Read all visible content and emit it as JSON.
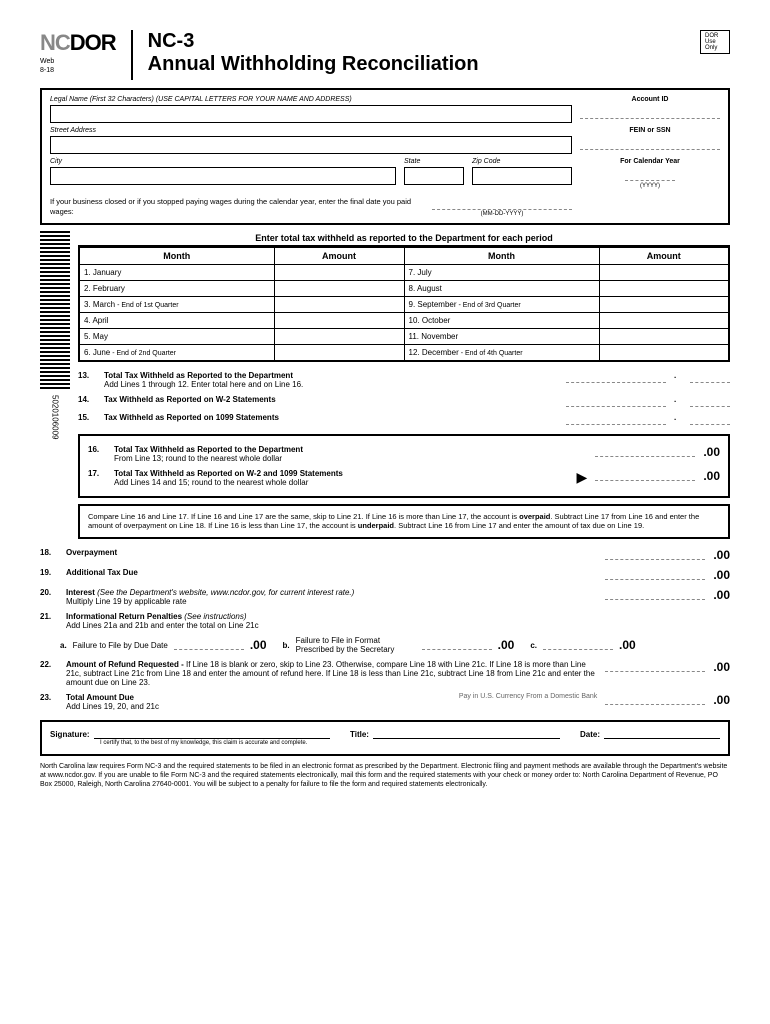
{
  "logo": {
    "prefix": "NC",
    "suffix": "DOR",
    "sub1": "Web",
    "sub2": "8-18"
  },
  "form": {
    "num": "NC-3",
    "title": "Annual Withholding Reconciliation"
  },
  "use_box": {
    "l1": "DOR",
    "l2": "Use",
    "l3": "Only"
  },
  "fields": {
    "legal_name": "Legal Name (First 32 Characters) (USE CAPITAL LETTERS FOR YOUR NAME AND ADDRESS)",
    "street": "Street Address",
    "city": "City",
    "state": "State",
    "zip": "Zip Code",
    "account": "Account ID",
    "fein": "FEIN or SSN",
    "year": "For Calendar Year",
    "year_sub": "(YYYY)",
    "closed": "If your business closed or if you stopped paying wages during the calendar year, enter the final date you paid wages:",
    "date_sub": "(MM-DD-YYYY)"
  },
  "section_hdr": "Enter total tax withheld as reported to the Department for each period",
  "tbl": {
    "month": "Month",
    "amount": "Amount"
  },
  "months": [
    {
      "n": "1.",
      "m": "January"
    },
    {
      "n": "2.",
      "m": "February"
    },
    {
      "n": "3.",
      "m": "March",
      "q": " - End of 1st Quarter"
    },
    {
      "n": "4.",
      "m": "April"
    },
    {
      "n": "5.",
      "m": "May"
    },
    {
      "n": "6.",
      "m": "June",
      "q": " - End of 2nd Quarter"
    },
    {
      "n": "7.",
      "m": "July"
    },
    {
      "n": "8.",
      "m": "August"
    },
    {
      "n": "9.",
      "m": "September",
      "q": " - End of 3rd Quarter"
    },
    {
      "n": "10.",
      "m": "October"
    },
    {
      "n": "11.",
      "m": "November"
    },
    {
      "n": "12.",
      "m": "December",
      "q": " - End of 4th Quarter"
    }
  ],
  "lines": {
    "l13": {
      "n": "13.",
      "t": "Total Tax Withheld as Reported to the Department",
      "s": "Add Lines 1 through 12.  Enter total here and on Line 16."
    },
    "l14": {
      "n": "14.",
      "t": "Tax Withheld as Reported on W-2 Statements"
    },
    "l15": {
      "n": "15.",
      "t": "Tax Withheld as Reported on 1099 Statements"
    },
    "l16": {
      "n": "16.",
      "t": "Total Tax Withheld as Reported to the Department",
      "s": "From Line 13; round to the nearest whole dollar"
    },
    "l17": {
      "n": "17.",
      "t": "Total Tax Withheld as Reported on  W-2 and 1099 Statements",
      "s": "Add Lines 14 and 15; round to the nearest whole dollar"
    },
    "l18": {
      "n": "18.",
      "t": "Overpayment"
    },
    "l19": {
      "n": "19.",
      "t": "Additional Tax Due"
    },
    "l20": {
      "n": "20.",
      "t": "Interest",
      "i": " (See the Department's website, www.ncdor.gov, for current interest rate.)",
      "s": "Multiply Line 19 by applicable rate"
    },
    "l21": {
      "n": "21.",
      "t": "Informational Return Penalties",
      "i": " (See instructions)",
      "s": "Add Lines 21a and 21b and enter the total on Line 21c"
    },
    "l21a": {
      "n": "a.",
      "t": "Failure to File by Due Date"
    },
    "l21b": {
      "n": "b.",
      "t": "Failure to File in Format Prescribed by the Secretary"
    },
    "l21c": {
      "n": "c."
    },
    "l22": {
      "n": "22.",
      "t": "Amount of Refund Requested - ",
      "s": "If Line 18 is blank or zero, skip to Line 23. Otherwise, compare Line 18 with Line 21c. If Line 18 is more than Line 21c, subtract Line 21c from Line 18 and enter the amount of refund here. If Line 18 is less than Line 21c, subtract Line 18 from Line 21c and enter the amount due on Line 23."
    },
    "l23": {
      "n": "23.",
      "t": "Total Amount Due",
      "s": "Add Lines 19, 20, and 21c",
      "p": "Pay in U.S. Currency From a Domestic Bank"
    }
  },
  "compare": "Compare Line 16 and Line 17.  If Line 16 and Line 17 are the same, skip to Line 21.  If Line 16 is more than Line 17, the account is overpaid.  Subtract Line 17 from Line 16 and enter the amount of overpayment on Line 18.  If Line 16 is less than Line 17, the account is underpaid.  Subtract Line 16 from Line 17 and enter the amount of tax due on Line 19.",
  "sig": {
    "signature": "Signature:",
    "title": "Title:",
    "date": "Date:",
    "cert": "I certify that, to the best of my knowledge, this claim is accurate and complete."
  },
  "footer": "North Carolina law requires Form NC-3 and the required statements to be filed in an electronic format as prescribed by the Department.  Electronic filing and payment methods are available through the Department's website at www.ncdor.gov.  If you are unable to file Form NC-3 and the required statements electronically, mail this form and the required statements with your check or money order to: North Carolina Department of Revenue, PO Box 25000, Raleigh, North Carolina 27640-0001.  You will be subject to a penalty for failure to file the form and required statements electronically.",
  "barcode": "5020106009",
  "cents": ".00"
}
